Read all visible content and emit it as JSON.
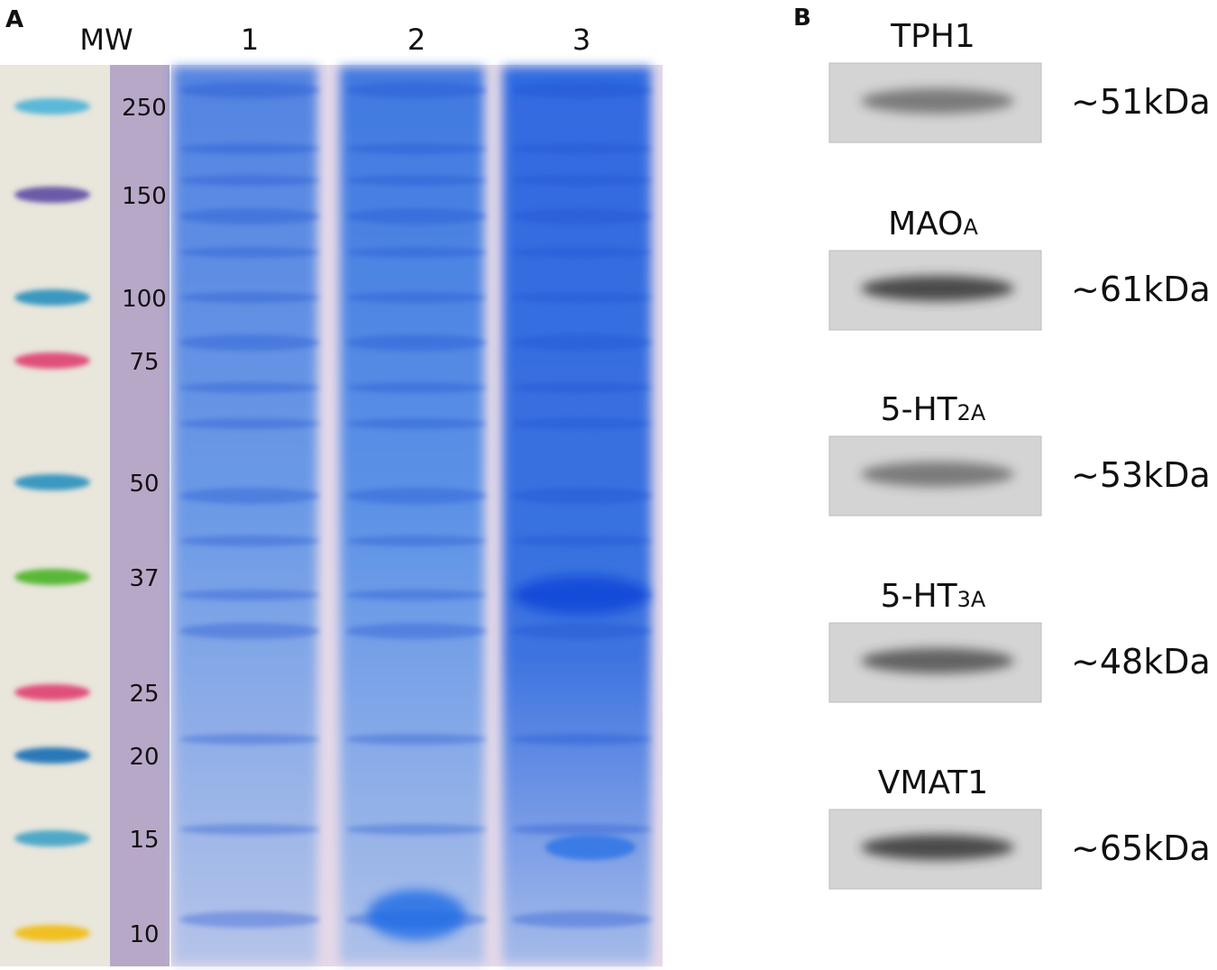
{
  "panels": {
    "a": {
      "label": "A",
      "ladder_header": "MW",
      "lanes": [
        "1",
        "2",
        "3"
      ],
      "ladder": [
        "250",
        "150",
        "100",
        "75",
        "50",
        "37",
        "25",
        "20",
        "15",
        "10"
      ]
    },
    "b": {
      "label": "B",
      "blots": [
        {
          "name": "TPH1",
          "sub": null,
          "size": "~51kDa"
        },
        {
          "name": "MAO",
          "sub": "A",
          "size": "~61kDa"
        },
        {
          "name": "5-HT",
          "sub": "2A",
          "size": "~53kDa"
        },
        {
          "name": "5-HT",
          "sub": "3A",
          "size": "~48kDa"
        },
        {
          "name": "VMAT1",
          "sub": null,
          "size": "~65kDa"
        }
      ]
    }
  }
}
